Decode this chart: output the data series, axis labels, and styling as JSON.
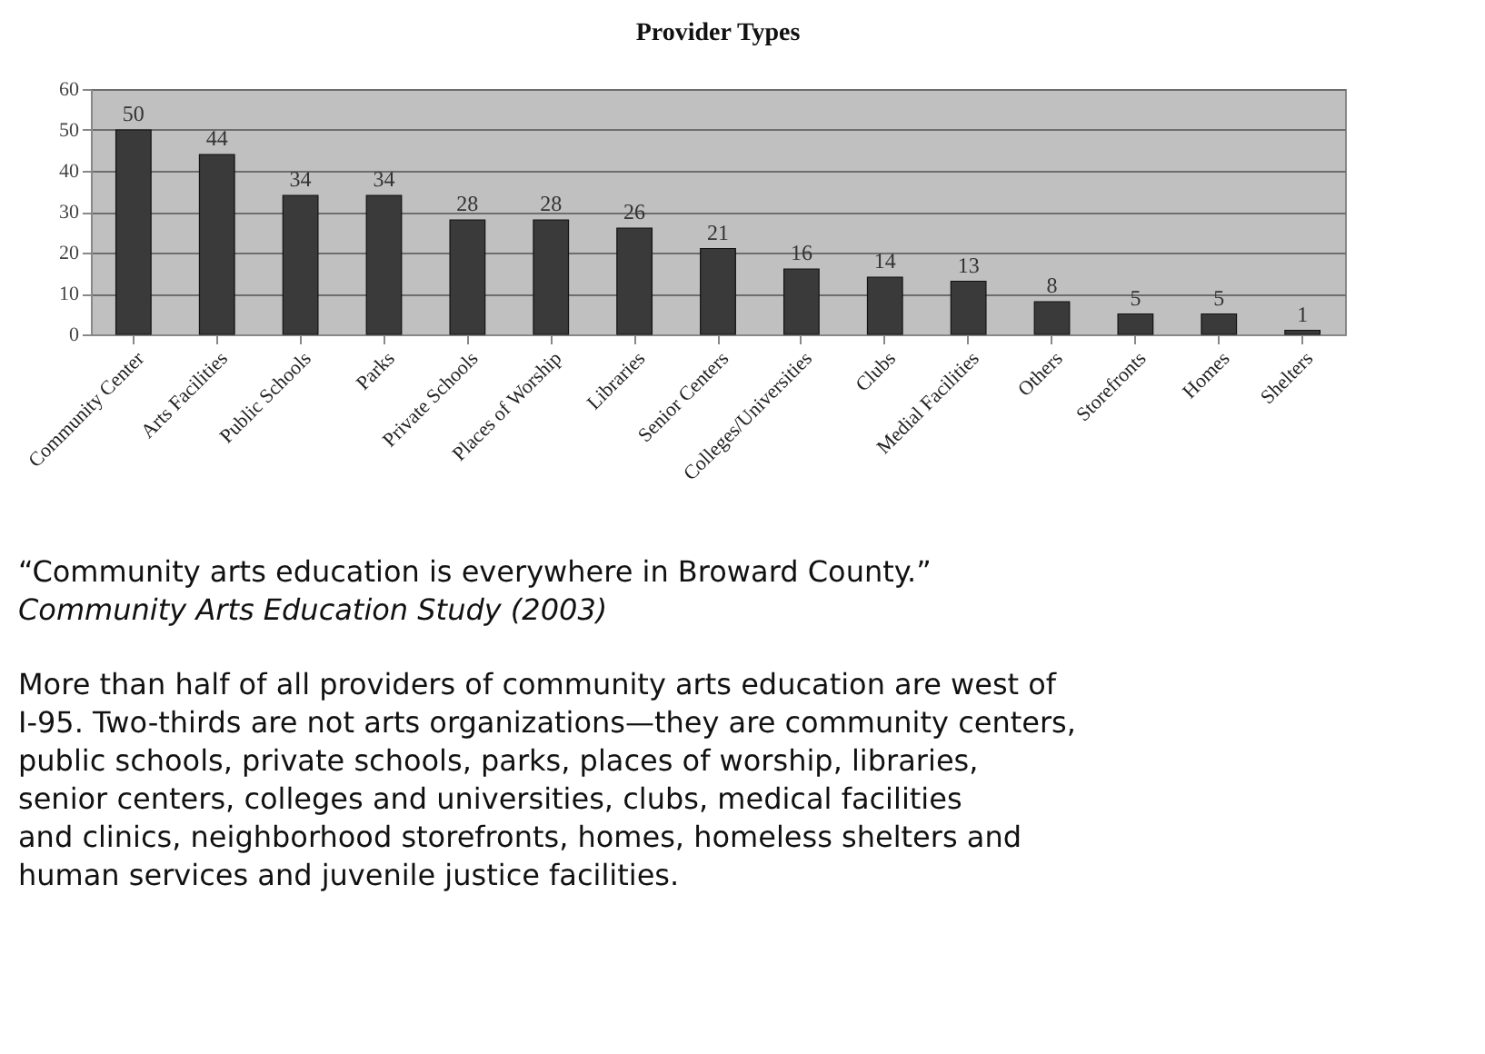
{
  "chart_data": {
    "type": "bar",
    "title": "Provider Types",
    "categories": [
      "Community Center",
      "Arts Facilities",
      "Public Schools",
      "Parks",
      "Private Schools",
      "Places of Worship",
      "Libraries",
      "Senior Centers",
      "Colleges/Universities",
      "Clubs",
      "Medial Facilities",
      "Others",
      "Storefronts",
      "Homes",
      "Shelters"
    ],
    "values": [
      50,
      44,
      34,
      34,
      28,
      28,
      26,
      21,
      16,
      14,
      13,
      8,
      5,
      5,
      1
    ],
    "color": "#3a3a3a",
    "ylim": [
      0,
      60
    ],
    "yticks": [
      0,
      10,
      20,
      30,
      40,
      50,
      60
    ],
    "grid": "y",
    "data_labels": true,
    "annotations": [
      "“Community arts education is everywhere in Broward County.”",
      "Community Arts Education Study (2003)",
      "More than half of all providers of community arts education are west of I-95. Two-thirds are not arts organizations—they are community centers, public schools, private schools, parks, places of worship, libraries, senior centers, colleges and universities, clubs, medical facilities and clinics, neighborhood storefronts, homes, homeless shelters and human services and juvenile justice facilities."
    ]
  }
}
